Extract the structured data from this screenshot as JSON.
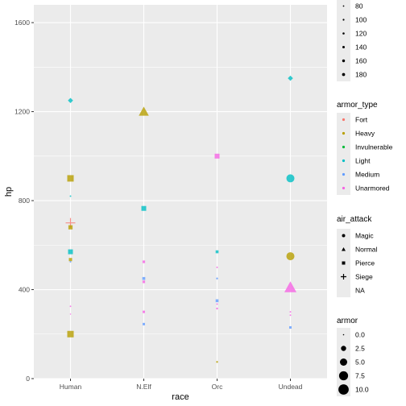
{
  "chart_data": {
    "type": "scatter",
    "title": "",
    "xlabel": "race",
    "ylabel": "hp",
    "categories": [
      "Human",
      "N.Elf",
      "Orc",
      "Undead"
    ],
    "ylim": [
      0,
      1680
    ],
    "yticks": [
      0,
      400,
      800,
      1200,
      1600
    ],
    "grid": true,
    "legend_position": "right",
    "colors": {
      "Fort": "#F8766D",
      "Heavy": "#B79F00",
      "Invulnerable": "#00BA38",
      "Light": "#00BFC4",
      "Medium": "#619CFF",
      "Unarmored": "#F564E3"
    },
    "legends": {
      "size_upper": {
        "title": "",
        "labels": [
          "80",
          "100",
          "120",
          "140",
          "160",
          "180"
        ]
      },
      "armor_type": {
        "title": "armor_type",
        "labels": [
          "Fort",
          "Heavy",
          "Invulnerable",
          "Light",
          "Medium",
          "Unarmored"
        ]
      },
      "air_attack": {
        "title": "air_attack",
        "labels": [
          "Magic",
          "Normal",
          "Pierce",
          "Siege",
          "NA"
        ]
      },
      "armor": {
        "title": "armor",
        "labels": [
          "0.0",
          "2.5",
          "5.0",
          "7.5",
          "10.0"
        ]
      }
    },
    "points": [
      {
        "race": "Human",
        "hp": 1250,
        "armor_type": "Light",
        "shape": "diamond",
        "size": 2.6
      },
      {
        "race": "Human",
        "hp": 900,
        "armor_type": "Heavy",
        "shape": "square",
        "size": 4.0
      },
      {
        "race": "Human",
        "hp": 820,
        "armor_type": "Light",
        "shape": "circle",
        "size": 1.0
      },
      {
        "race": "Human",
        "hp": 700,
        "armor_type": "Fort",
        "shape": "plus",
        "size": 6.0
      },
      {
        "race": "Human",
        "hp": 680,
        "armor_type": "Heavy",
        "shape": "square",
        "size": 2.6
      },
      {
        "race": "Human",
        "hp": 570,
        "armor_type": "Light",
        "shape": "square",
        "size": 3.0
      },
      {
        "race": "Human",
        "hp": 535,
        "armor_type": "Heavy",
        "shape": "square",
        "size": 2.0
      },
      {
        "race": "Human",
        "hp": 525,
        "armor_type": "Medium",
        "shape": "circle",
        "size": 1.0
      },
      {
        "race": "Human",
        "hp": 325,
        "armor_type": "Unarmored",
        "shape": "circle",
        "size": 1.0
      },
      {
        "race": "Human",
        "hp": 290,
        "armor_type": "Unarmored",
        "shape": "circle",
        "size": 0.8
      },
      {
        "race": "Human",
        "hp": 200,
        "armor_type": "Heavy",
        "shape": "square",
        "size": 4.0
      },
      {
        "race": "N.Elf",
        "hp": 1200,
        "armor_type": "Heavy",
        "shape": "triangle",
        "size": 5.0
      },
      {
        "race": "N.Elf",
        "hp": 765,
        "armor_type": "Light",
        "shape": "square",
        "size": 3.0
      },
      {
        "race": "N.Elf",
        "hp": 525,
        "armor_type": "Unarmored",
        "shape": "square",
        "size": 1.6
      },
      {
        "race": "N.Elf",
        "hp": 450,
        "armor_type": "Medium",
        "shape": "square",
        "size": 1.8
      },
      {
        "race": "N.Elf",
        "hp": 435,
        "armor_type": "Unarmored",
        "shape": "square",
        "size": 1.6
      },
      {
        "race": "N.Elf",
        "hp": 300,
        "armor_type": "Unarmored",
        "shape": "square",
        "size": 1.5
      },
      {
        "race": "N.Elf",
        "hp": 245,
        "armor_type": "Medium",
        "shape": "square",
        "size": 1.5
      },
      {
        "race": "Orc",
        "hp": 1000,
        "armor_type": "Unarmored",
        "shape": "square",
        "size": 3.0
      },
      {
        "race": "Orc",
        "hp": 570,
        "armor_type": "Light",
        "shape": "square",
        "size": 1.8
      },
      {
        "race": "Orc",
        "hp": 500,
        "armor_type": "Unarmored",
        "shape": "circle",
        "size": 1.0
      },
      {
        "race": "Orc",
        "hp": 450,
        "armor_type": "Medium",
        "shape": "circle",
        "size": 1.2
      },
      {
        "race": "Orc",
        "hp": 350,
        "armor_type": "Medium",
        "shape": "square",
        "size": 1.8
      },
      {
        "race": "Orc",
        "hp": 335,
        "armor_type": "Unarmored",
        "shape": "circle",
        "size": 1.0
      },
      {
        "race": "Orc",
        "hp": 315,
        "armor_type": "Unarmored",
        "shape": "circle",
        "size": 1.2
      },
      {
        "race": "Orc",
        "hp": 75,
        "armor_type": "Heavy",
        "shape": "circle",
        "size": 1.2
      },
      {
        "race": "Undead",
        "hp": 1350,
        "armor_type": "Light",
        "shape": "diamond",
        "size": 2.6
      },
      {
        "race": "Undead",
        "hp": 900,
        "armor_type": "Light",
        "shape": "circle",
        "size": 5.0
      },
      {
        "race": "Undead",
        "hp": 550,
        "armor_type": "Heavy",
        "shape": "circle",
        "size": 5.0
      },
      {
        "race": "Undead",
        "hp": 410,
        "armor_type": "Unarmored",
        "shape": "triangle",
        "size": 6.0
      },
      {
        "race": "Undead",
        "hp": 300,
        "armor_type": "Unarmored",
        "shape": "circle",
        "size": 1.0
      },
      {
        "race": "Undead",
        "hp": 285,
        "armor_type": "Unarmored",
        "shape": "circle",
        "size": 1.0
      },
      {
        "race": "Undead",
        "hp": 230,
        "armor_type": "Medium",
        "shape": "square",
        "size": 1.5
      }
    ]
  }
}
